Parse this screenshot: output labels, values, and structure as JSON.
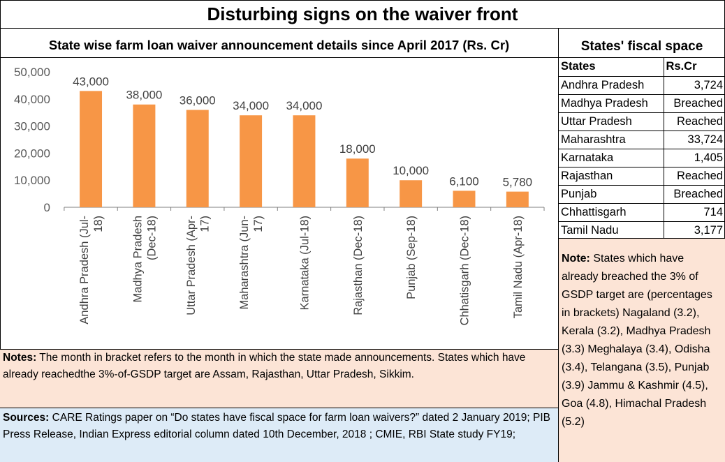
{
  "title": "Disturbing signs on the waiver front",
  "fiscal_table": {
    "title": "States' fiscal space",
    "headers": [
      "States",
      "Rs.Cr"
    ],
    "rows": [
      {
        "state": "Andhra Pradesh",
        "value": "3,724"
      },
      {
        "state": "Madhya Pradesh",
        "value": "Breached"
      },
      {
        "state": "Uttar Pradesh",
        "value": "Reached"
      },
      {
        "state": "Maharashtra",
        "value": "33,724"
      },
      {
        "state": "Karnataka",
        "value": "1,405"
      },
      {
        "state": "Rajasthan",
        "value": "Reached"
      },
      {
        "state": "Punjab",
        "value": "Breached"
      },
      {
        "state": "Chhattisgarh",
        "value": "714"
      },
      {
        "state": "Tamil Nadu",
        "value": "3,177"
      }
    ]
  },
  "side_note": {
    "label": "Note:",
    "text": "States which have already breached the 3% of GSDP target are (percentages in brackets) Nagaland (3.2), Kerala (3.2), Madhya Pradesh (3.3) Meghalaya (3.4), Odisha (3.4), Telangana (3.5), Punjab (3.9) Jammu & Kashmir (4.5), Goa (4.8), Himachal Pradesh (5.2)"
  },
  "notes": {
    "label": "Notes:",
    "text": "The month in bracket refers to the month in which the state made announcements. States which have already reachedthe 3%-of-GSDP target are Assam, Rajasthan, Uttar Pradesh, Sikkim."
  },
  "sources": {
    "label": "Sources:",
    "text": "CARE Ratings paper on “Do states have fiscal space for farm loan waivers?” dated 2 January 2019;  PIB Press Release, Indian Express editorial column dated 10th December, 2018 ; CMIE, RBI State study FY19;"
  },
  "chart_data": {
    "type": "bar",
    "title": "State wise farm loan waiver announcement details since April 2017 (Rs. Cr)",
    "categories": [
      [
        "Andhra Pradesh (Jul-",
        "18)"
      ],
      [
        "Madhya Pradesh",
        "(Dec-18)"
      ],
      [
        "Uttar Pradesh (Apr-",
        "17)"
      ],
      [
        "Maharashtra  (Jun-",
        "17)"
      ],
      [
        "Karnataka (Jul-18)"
      ],
      [
        "Rajasthan (Dec-18)"
      ],
      [
        "Punjab (Sep-18)"
      ],
      [
        "Chhatisgarh (Dec-18)"
      ],
      [
        "Tamil Nadu (Apr-18)"
      ]
    ],
    "values": [
      43000,
      38000,
      36000,
      34000,
      34000,
      18000,
      10000,
      6100,
      5780
    ],
    "data_labels": [
      "43,000",
      "38,000",
      "36,000",
      "34,000",
      "34,000",
      "18,000",
      "10,000",
      "6,100",
      "5,780"
    ],
    "yticks": [
      "0",
      "10,000",
      "20,000",
      "30,000",
      "40,000",
      "50,000"
    ],
    "ylim": [
      0,
      50000
    ],
    "xlabel": "",
    "ylabel": "",
    "grid": false,
    "bar_color": "#f79646"
  }
}
